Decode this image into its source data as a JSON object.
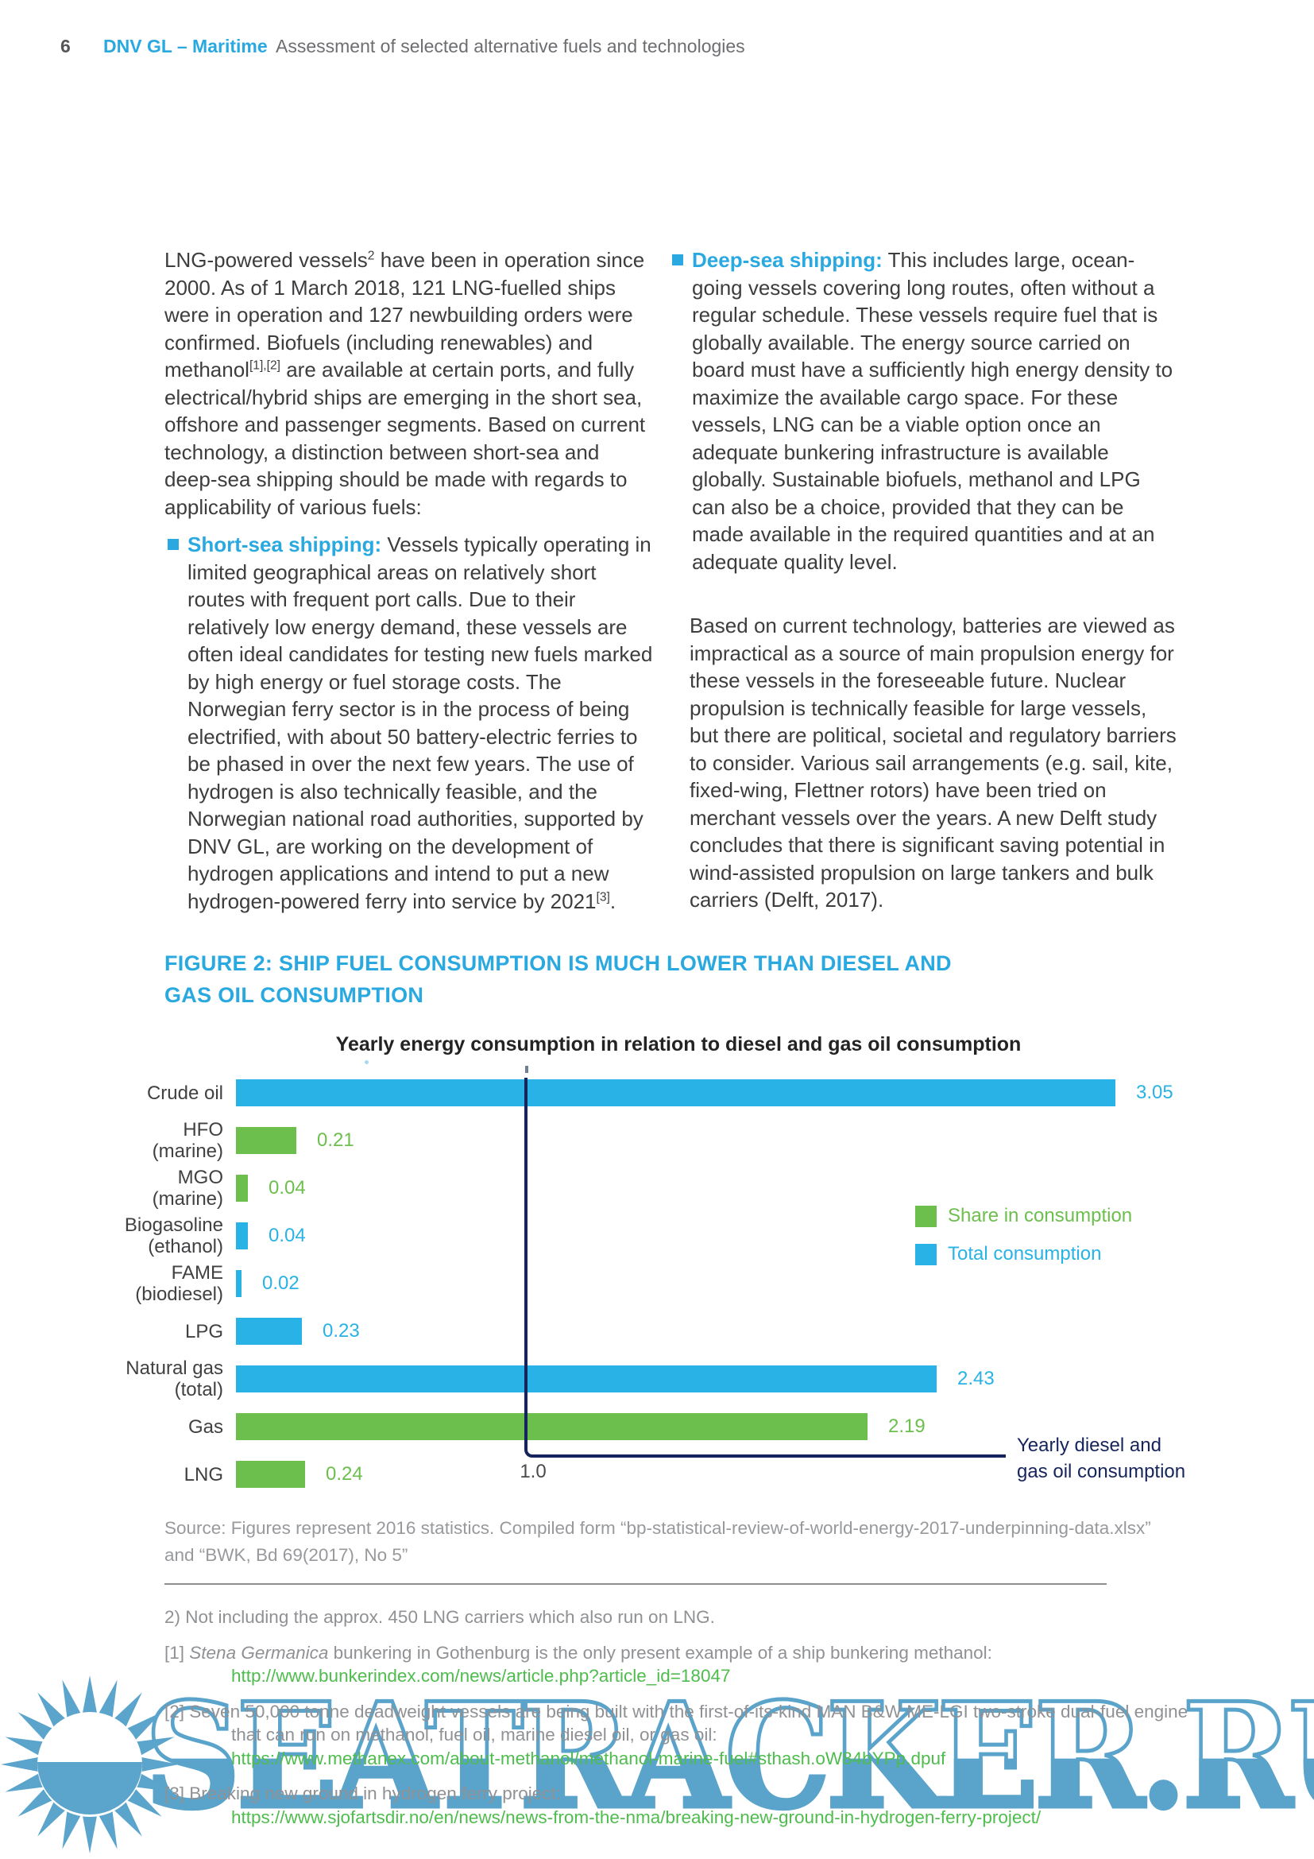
{
  "header": {
    "page_number": "6",
    "brand": "DNV GL – Maritime",
    "doc_title": "Assessment of selected alternative fuels and technologies"
  },
  "intro": {
    "s1": "LNG-powered vessels",
    "sup1": "2",
    "s2": " have been in operation since 2000. As of 1 March 2018, 121 LNG-fuelled ships were in operation and 127 newbuilding orders were confirmed. Biofuels (including renewables) and methanol",
    "sup2": "[1],[2]",
    "s3": " are available at certain ports, and fully electrical/hybrid ships are emerging in the short sea, offshore and passenger segments. Based on current technology, a distinction between short-sea and deep-sea shipping should be made with regards to applicability of various fuels:"
  },
  "bullets": {
    "short_sea": {
      "label": "Short-sea shipping:",
      "text": " Vessels typically operating in limited geographical areas on relatively short routes with frequent port calls. Due to their relatively low energy demand, these vessels are often ideal candidates for testing new fuels marked by high energy or fuel storage costs. The Norwegian ferry sector is in the process of being electrified, with about 50 battery-electric ferries to be phased in over the next few years. The use of hydrogen is also technically feasible, and the Norwegian national road authorities, supported by DNV GL, are working on the development of hydrogen applications and intend to put a new hydrogen-powered ferry into service by 2021",
      "sup": "[3]",
      "tail": "."
    },
    "deep_sea": {
      "label": "Deep-sea shipping:",
      "text": " This includes large, ocean-going vessels covering long routes, often without a regular schedule. These vessels require fuel that is globally available. The energy source carried on board must have a sufficiently high energy density to maximize the available cargo space. For these vessels, LNG can be a viable option once an adequate bunkering infrastructure is available globally. Sustainable biofuels, methanol and LPG can also be a choice, provided that they can be made available in the required quantities and at an adequate quality level."
    }
  },
  "paragraph2": "Based on current technology, batteries are viewed as impractical as a source of main propulsion energy for these vessels in the foreseeable future. Nuclear propulsion is technically feasible for large vessels, but there are political, societal and regulatory barriers to consider. Various sail arrangements (e.g. sail, kite, fixed-wing, Flettner rotors) have been tried on merchant vessels over the years. A new Delft study concludes that there is significant saving potential in wind-assisted propulsion on large tankers and bulk carriers (Delft, 2017).",
  "figure": {
    "heading_line1": "FIGURE 2: SHIP FUEL CONSUMPTION IS MUCH LOWER THAN DIESEL AND",
    "heading_line2": "GAS OIL CONSUMPTION",
    "source_line1": "Source: Figures represent 2016 statistics. Compiled form “bp-statistical-review-of-world-energy-2017-underpinning-data.xlsx”",
    "source_line2": "and “BWK, Bd 69(2017), No 5”"
  },
  "chart_data": {
    "type": "bar",
    "orientation": "horizontal",
    "title": "Yearly energy consumption in relation to diesel and gas oil consumption",
    "axis_visible": false,
    "grid": false,
    "xlim": [
      0,
      3.4
    ],
    "series_colors": {
      "share": "#6cbf4d",
      "total": "#29b2e6"
    },
    "legend_position": "right-middle",
    "legend": [
      {
        "label": "Share in consumption",
        "series": "share"
      },
      {
        "label": "Total consumption",
        "series": "total"
      }
    ],
    "items": [
      {
        "label_lines": [
          "Crude oil"
        ],
        "value": 3.05,
        "display": "3.05",
        "series": "total"
      },
      {
        "label_lines": [
          "HFO",
          "(marine)"
        ],
        "value": 0.21,
        "display": "0.21",
        "series": "share"
      },
      {
        "label_lines": [
          "MGO",
          "(marine)"
        ],
        "value": 0.04,
        "display": "0.04",
        "series": "share"
      },
      {
        "label_lines": [
          "Biogasoline",
          "(ethanol)"
        ],
        "value": 0.04,
        "display": "0.04",
        "series": "total"
      },
      {
        "label_lines": [
          "FAME",
          "(biodiesel)"
        ],
        "value": 0.02,
        "display": "0.02",
        "series": "total"
      },
      {
        "label_lines": [
          "LPG"
        ],
        "value": 0.23,
        "display": "0.23",
        "series": "total"
      },
      {
        "label_lines": [
          "Natural gas",
          "(total)"
        ],
        "value": 2.43,
        "display": "2.43",
        "series": "total"
      },
      {
        "label_lines": [
          "Gas"
        ],
        "value": 2.19,
        "display": "2.19",
        "series": "share"
      },
      {
        "label_lines": [
          "LNG"
        ],
        "value": 0.24,
        "display": "0.24",
        "series": "share"
      }
    ],
    "reference_line": {
      "value": 1.0,
      "tick_label": "1.0",
      "annotation_line1": "Yearly diesel and",
      "annotation_line2": "gas oil consumption",
      "color": "#16245c"
    }
  },
  "footnotes": {
    "fn_note2": "2) Not including the approx. 450 LNG carriers which also run on LNG.",
    "fn1": {
      "marker": "[1] ",
      "italic": "Stena Germanica",
      "text": " bunkering in Gothenburg is the only present example of a ship bunkering methanol:",
      "link": "http://www.bunkerindex.com/news/article.php?article_id=18047"
    },
    "fn2": {
      "marker": "[2] ",
      "text": "Seven 50,000 tonne deadweight vessels are being built with the first-of-its-kind MAN B&W ME-LGI two-stroke dual-fuel engine that can run on methanol, fuel oil, marine diesel oil, or gas oil:",
      "link": "https://www.methanex.com/about-methanol/methanol-marine-fuel#sthash.oW84bYPp.dpuf"
    },
    "fn3": {
      "marker": "[3] ",
      "text": "Breaking new ground in hydrogen ferry project:",
      "link": "https://www.sjofartsdir.no/en/news/news-from-the-nma/breaking-new-ground-in-hydrogen-ferry-project/"
    }
  },
  "watermark": {
    "text": "SEATRACKER.RU",
    "color": "#5aa3cb"
  },
  "logo": {
    "name": "sun-logo",
    "color": "#5ba4cc"
  },
  "colors": {
    "accent_blue": "#29a9e0",
    "bar_blue": "#29b2e6",
    "bar_green": "#6cbf4d",
    "navy": "#16245c",
    "link_green": "#4fbc4e",
    "body_text": "#3d3d3f",
    "muted_gray": "#97999c"
  }
}
